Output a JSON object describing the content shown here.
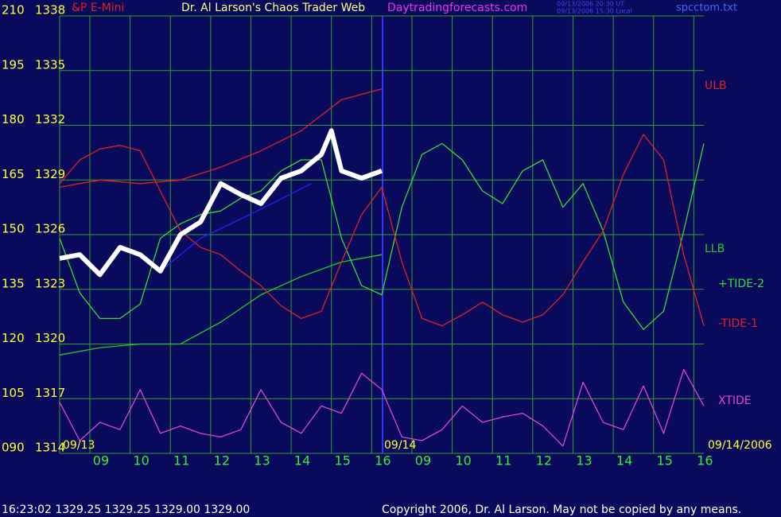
{
  "chart_data": {
    "type": "line",
    "instrument": "&P E-Mini",
    "title": "Dr. Al Larson's Chaos Trader Web",
    "subtitle": "Daytradingforecasts.com",
    "timestamps": [
      "09/13/2006 20:30 UT",
      "09/13/2006 15:30 Local"
    ],
    "file": "spcctom.txt",
    "date_labels": [
      "09/13",
      "09/14",
      "09/14/2006"
    ],
    "footer": "16:23:02  1329.25 1329.25 1329.00 1329.00",
    "copyright": "Copyright 2006, Dr. Al Larson. May not be copied by any means.",
    "grid": true,
    "grid_color": "#2fa02f",
    "xlim": [
      0,
      16
    ],
    "xticks": [
      {
        "value": 0.75,
        "label": "09"
      },
      {
        "value": 1.75,
        "label": "10"
      },
      {
        "value": 2.75,
        "label": "11"
      },
      {
        "value": 3.75,
        "label": "12"
      },
      {
        "value": 4.75,
        "label": "13"
      },
      {
        "value": 5.75,
        "label": "14"
      },
      {
        "value": 6.75,
        "label": "15"
      },
      {
        "value": 7.75,
        "label": "16"
      },
      {
        "value": 8.75,
        "label": "09"
      },
      {
        "value": 9.75,
        "label": "10"
      },
      {
        "value": 10.75,
        "label": "11"
      },
      {
        "value": 11.75,
        "label": "12"
      },
      {
        "value": 12.75,
        "label": "13"
      },
      {
        "value": 13.75,
        "label": "14"
      },
      {
        "value": 14.75,
        "label": "15"
      },
      {
        "value": 15.75,
        "label": "16"
      }
    ],
    "ylim": [
      90,
      210
    ],
    "yticks": [
      {
        "value": 90,
        "label": "090"
      },
      105,
      120,
      135,
      150,
      165,
      180,
      195,
      210
    ],
    "y2lim": [
      1314,
      1338
    ],
    "y2ticks": [
      1314,
      1317,
      1320,
      1323,
      1326,
      1329,
      1332,
      1335,
      1338
    ],
    "series": [
      {
        "name": "ULB",
        "color": "#dd2222",
        "x": [
          0,
          1,
          2,
          3,
          4,
          5,
          6,
          7,
          8
        ],
        "values": [
          163,
          165,
          164,
          165,
          168.5,
          173,
          178.5,
          187,
          190
        ]
      },
      {
        "name": "LLB",
        "color": "#22cc22",
        "x": [
          0,
          1,
          2,
          3,
          4,
          5,
          6,
          7,
          8
        ],
        "values": [
          117,
          119,
          120,
          120,
          126,
          133.5,
          138.5,
          142.5,
          144.5
        ]
      },
      {
        "name": "+TIDE-2",
        "color": "#33dd33",
        "x": [
          0,
          0.5,
          1,
          1.5,
          2,
          2.5,
          3,
          3.5,
          4,
          4.5,
          5,
          5.5,
          6,
          6.5,
          7,
          7.5,
          8,
          8.5,
          9,
          9.5,
          10,
          10.5,
          11,
          11.5,
          12,
          12.5,
          13,
          13.5,
          14,
          14.5,
          15,
          15.5,
          16
        ],
        "values": [
          149,
          134,
          127,
          127,
          131,
          149,
          153,
          155.5,
          156.5,
          160,
          162,
          167.5,
          170.5,
          170.5,
          149,
          136,
          133.5,
          157.5,
          172,
          175,
          170.5,
          162,
          158.5,
          167.5,
          170.5,
          157.5,
          164,
          151,
          131.5,
          124,
          129,
          151,
          175
        ]
      },
      {
        "name": "-TIDE-1",
        "color": "#dd2222",
        "x": [
          0,
          0.5,
          1,
          1.5,
          2,
          2.5,
          3,
          3.5,
          4,
          4.5,
          5,
          5.5,
          6,
          6.5,
          7,
          7.5,
          8,
          8.5,
          9,
          9.5,
          10,
          10.5,
          11,
          11.5,
          12,
          12.5,
          13,
          13.5,
          14,
          14.5,
          15,
          15.5,
          16
        ],
        "values": [
          164,
          170.5,
          173.5,
          174.5,
          173,
          162,
          151,
          146.5,
          144.5,
          140,
          136,
          130.5,
          127,
          129,
          142.5,
          155.5,
          163,
          142.5,
          127,
          125,
          128,
          131.5,
          128,
          126,
          128,
          133.5,
          142.5,
          151,
          166.5,
          177.5,
          170.5,
          144.5,
          125
        ]
      },
      {
        "name": "XTIDE",
        "color": "#dd44dd",
        "x": [
          0,
          0.5,
          1,
          1.5,
          2,
          2.5,
          3,
          3.5,
          4,
          4.5,
          5,
          5.5,
          6,
          6.5,
          7,
          7.5,
          8,
          8.5,
          9,
          9.5,
          10,
          10.5,
          11,
          11.5,
          12,
          12.5,
          13,
          13.5,
          14,
          14.5,
          15,
          15.5,
          16
        ],
        "values": [
          104,
          93.5,
          98.5,
          96.5,
          107.5,
          95.5,
          97.5,
          95.5,
          94.5,
          96.5,
          107.5,
          98.5,
          95.5,
          103,
          101,
          112,
          107.5,
          94.5,
          93.5,
          96.5,
          103,
          98.5,
          100,
          101,
          97.5,
          92,
          109.5,
          98.5,
          96.5,
          108.5,
          95.5,
          113,
          103
        ]
      },
      {
        "color": "#2222ff",
        "x": [
          2.5,
          3.5,
          5,
          6.25
        ],
        "values": [
          140,
          149,
          157,
          164
        ]
      },
      {
        "color": "#ffffff",
        "axis": "y2",
        "x": [
          0,
          0.5,
          1,
          1.5,
          2,
          2.5,
          3,
          3.5,
          4,
          4.5,
          5,
          5.5,
          6,
          6.5,
          6.75,
          7,
          7.5,
          8
        ],
        "values": [
          1324.7,
          1324.9,
          1323.8,
          1325.3,
          1324.9,
          1324,
          1326,
          1326.7,
          1328.8,
          1328.2,
          1327.7,
          1329.1,
          1329.5,
          1330.4,
          1331.7,
          1329.5,
          1329.1,
          1329.5
        ]
      }
    ]
  }
}
